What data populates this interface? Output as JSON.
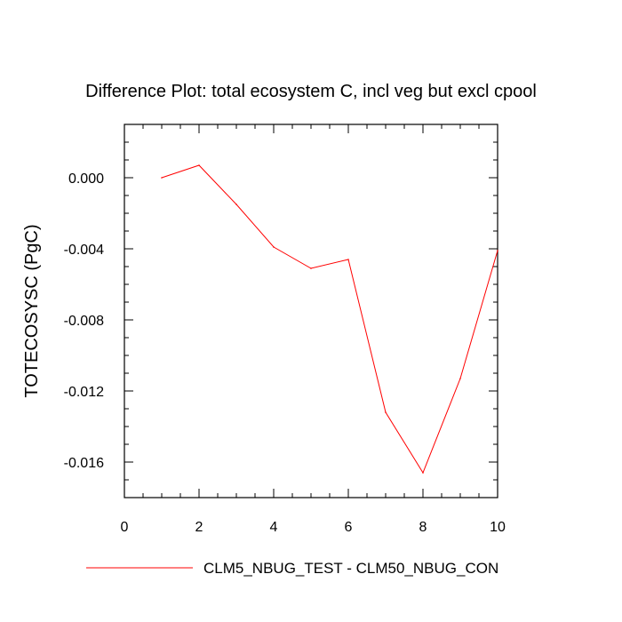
{
  "chart_data": {
    "type": "line",
    "title": "Difference Plot: total ecosystem C, incl veg but excl cpool",
    "xlabel": "",
    "ylabel": "TOTECOSYSC  (PgC)",
    "xlim": [
      0,
      10
    ],
    "ylim": [
      -0.018,
      0.003
    ],
    "x_ticks": [
      0,
      2,
      4,
      6,
      8,
      10
    ],
    "x_tick_labels": [
      "0",
      "2",
      "4",
      "6",
      "8",
      "10"
    ],
    "y_ticks": [
      0.0,
      -0.004,
      -0.008,
      -0.012,
      -0.016
    ],
    "y_tick_labels": [
      "0.000",
      "-0.004",
      "-0.008",
      "-0.012",
      "-0.016"
    ],
    "grid": false,
    "legend_position": "bottom",
    "series": [
      {
        "name": "CLM5_NBUG_TEST - CLM50_NBUG_CON",
        "color": "#ff0000",
        "x": [
          1,
          2,
          3,
          4,
          5,
          6,
          7,
          8,
          9,
          10
        ],
        "values": [
          0.0,
          0.0007,
          -0.0015,
          -0.0039,
          -0.0051,
          -0.0046,
          -0.0132,
          -0.0166,
          -0.0113,
          -0.0041
        ]
      }
    ]
  }
}
